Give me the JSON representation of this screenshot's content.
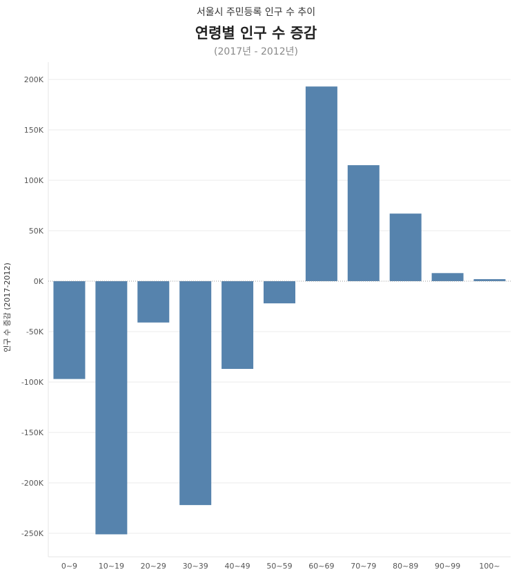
{
  "chart_data": {
    "type": "bar",
    "supertitle": "서울시 주민등록 인구 수 추이",
    "title": "연령별 인구 수 증감",
    "subtitle": "(2017년 - 2012년)",
    "ylabel": "인구 수 증감 (2017-2012)",
    "xlabel": "",
    "categories": [
      "0~9",
      "10~19",
      "20~29",
      "30~39",
      "40~49",
      "50~59",
      "60~69",
      "70~79",
      "80~89",
      "90~99",
      "100~"
    ],
    "values": [
      -97000,
      -251000,
      -41000,
      -222000,
      -87000,
      -22000,
      193000,
      115000,
      67000,
      8000,
      2000
    ],
    "yticks": [
      200000,
      150000,
      100000,
      50000,
      0,
      -50000,
      -100000,
      -150000,
      -200000,
      -250000
    ],
    "ytick_labels": [
      "200K",
      "150K",
      "100K",
      "50K",
      "0K",
      "-50K",
      "-100K",
      "-150K",
      "-200K",
      "-250K"
    ],
    "ylim": [
      -275000,
      215000
    ],
    "grid": true,
    "colors": {
      "bar": "#5683ad",
      "grid": "#ebebeb",
      "zero": "#999999"
    }
  }
}
